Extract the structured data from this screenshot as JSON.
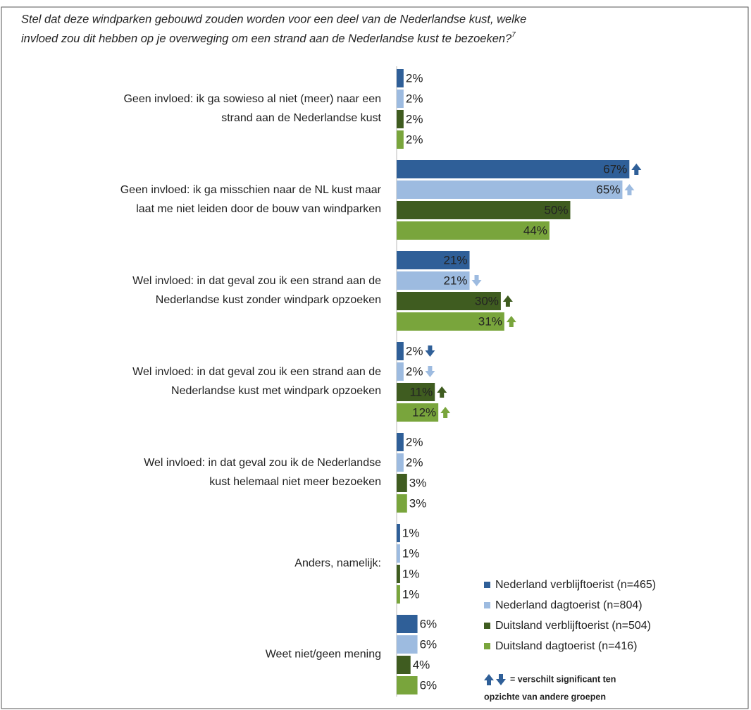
{
  "chart_data": {
    "type": "hbar",
    "title": [
      "Stel dat deze windparken gebouwd zouden worden voor een deel van de Nederlandse kust, welke",
      "invloed zou dit hebben op je overweging om een strand aan de Nederlandse kust te bezoeken?"
    ],
    "title_footnote": "7",
    "categories": [
      [
        "Geen invloed: ik ga sowieso al niet (meer) naar een",
        "strand aan de Nederlandse kust"
      ],
      [
        "Geen invloed: ik ga misschien naar de NL kust maar",
        "laat me niet leiden door de bouw van windparken"
      ],
      [
        "Wel invloed: in dat geval zou ik een strand aan de",
        "Nederlandse kust zonder windpark opzoeken"
      ],
      [
        "Wel invloed: in dat geval zou ik een strand aan de",
        "Nederlandse kust met windpark opzoeken"
      ],
      [
        "Wel invloed: in dat geval zou ik de Nederlandse",
        "kust helemaal niet meer bezoeken"
      ],
      [
        "Anders, namelijk:"
      ],
      [
        "Weet niet/geen mening"
      ]
    ],
    "series": [
      {
        "name": "Nederland verblijftoerist (n=465)",
        "color": "#2f5f98",
        "values": [
          2,
          67,
          21,
          2,
          2,
          1,
          6
        ],
        "value_labels": [
          "2%",
          "67%",
          "21%",
          "2%",
          "2%",
          "1%",
          "6%"
        ],
        "significance": [
          null,
          "up",
          null,
          "down",
          null,
          null,
          null
        ]
      },
      {
        "name": "Nederland dagtoerist (n=804)",
        "color": "#9dbbe0",
        "values": [
          2,
          65,
          21,
          2,
          2,
          1,
          6
        ],
        "value_labels": [
          "2%",
          "65%",
          "21%",
          "2%",
          "2%",
          "1%",
          "6%"
        ],
        "significance": [
          null,
          "up",
          "down",
          "down",
          null,
          null,
          null
        ]
      },
      {
        "name": "Duitsland verblijftoerist (n=504)",
        "color": "#3f5c20",
        "values": [
          2,
          50,
          30,
          11,
          3,
          1,
          4
        ],
        "value_labels": [
          "2%",
          "50%",
          "30%",
          "11%",
          "3%",
          "1%",
          "4%"
        ],
        "significance": [
          null,
          null,
          "up",
          "up",
          null,
          null,
          null
        ]
      },
      {
        "name": "Duitsland dagtoerist (n=416)",
        "color": "#79a53c",
        "values": [
          2,
          44,
          31,
          12,
          3,
          1,
          6
        ],
        "value_labels": [
          "2%",
          "44%",
          "31%",
          "12%",
          "3%",
          "1%",
          "6%"
        ],
        "significance": [
          null,
          null,
          "up",
          "up",
          null,
          null,
          null
        ]
      }
    ],
    "significance_note": [
      "= verschilt significant ten",
      "opzichte van andere groepen"
    ]
  }
}
